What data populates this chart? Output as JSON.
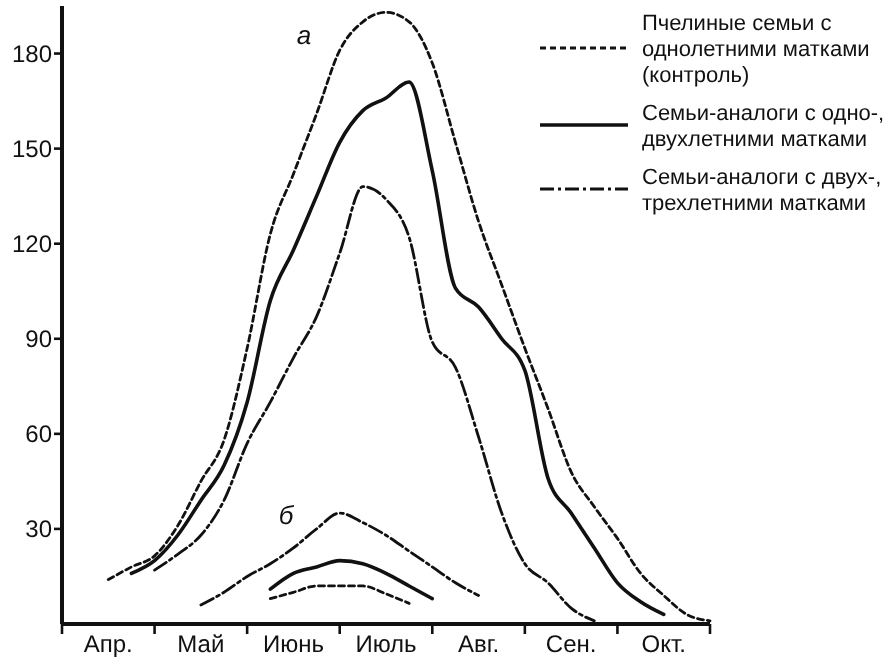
{
  "chart_data": {
    "type": "line",
    "ylim": [
      0,
      195
    ],
    "categories": [
      null,
      null,
      "Апр.",
      null,
      null,
      null,
      "Май",
      null,
      null,
      null,
      "Июнь",
      null,
      null,
      null,
      "Июль",
      null,
      null,
      null,
      "Авг.",
      null,
      null,
      null,
      "Сен.",
      null,
      null,
      null,
      "Окт.",
      null,
      null
    ],
    "yticks": [
      30,
      60,
      90,
      120,
      150,
      180
    ],
    "legend": "top right",
    "grid": false,
    "marker": "none",
    "series": [
      {
        "name": "Пчелиные семьи с однолетними матками (контроль)",
        "color": "#111111",
        "line_style": "dashed",
        "values": [
          null,
          null,
          14,
          18,
          21.5,
          31,
          45,
          58,
          87,
          123,
          142,
          161,
          181,
          190,
          193,
          190,
          177,
          152,
          127,
          107,
          87,
          68,
          48,
          37,
          27,
          16,
          9,
          3,
          1
        ]
      },
      {
        "name": "Семьи-аналоги с одно-, двухлетними матками",
        "color": "#111111",
        "line_style": "solid",
        "values": [
          null,
          null,
          null,
          16,
          20,
          28,
          39,
          50,
          70,
          102,
          118,
          135,
          152,
          162,
          166,
          171,
          143,
          106,
          100,
          90,
          80,
          46,
          35,
          24,
          13,
          7,
          3,
          null,
          null
        ]
      },
      {
        "name": "Семьи-аналоги с двух-, трехлетними матками",
        "color": "#111111",
        "line_style": "dashdot",
        "values": [
          null,
          null,
          null,
          null,
          17,
          22,
          28,
          39,
          57,
          70,
          84,
          97,
          117,
          138,
          134,
          122,
          89,
          81,
          59,
          35,
          19,
          13,
          5,
          1,
          null,
          null,
          null,
          null,
          null
        ]
      },
      {
        "color": "#111111",
        "line_style": "dashed",
        "values": [
          null,
          null,
          null,
          null,
          null,
          null,
          null,
          null,
          null,
          8,
          10,
          12,
          12,
          12,
          9.5,
          6.5,
          null,
          null,
          null,
          null,
          null,
          null,
          null,
          null,
          null,
          null,
          null,
          null,
          null
        ]
      },
      {
        "color": "#111111",
        "line_style": "solid",
        "values": [
          null,
          null,
          null,
          null,
          null,
          null,
          null,
          null,
          null,
          11,
          16,
          18,
          20,
          19,
          16,
          12,
          8,
          null,
          null,
          null,
          null,
          null,
          null,
          null,
          null,
          null,
          null,
          null,
          null
        ]
      },
      {
        "color": "#111111",
        "line_style": "dashdot",
        "values": [
          null,
          null,
          null,
          null,
          null,
          null,
          6,
          10,
          15,
          19,
          24,
          30,
          35,
          32,
          28,
          23,
          18,
          13,
          9,
          null,
          null,
          null,
          null,
          null,
          null,
          null,
          null,
          null,
          null
        ]
      }
    ],
    "annotations": [
      "а",
      "б"
    ]
  }
}
